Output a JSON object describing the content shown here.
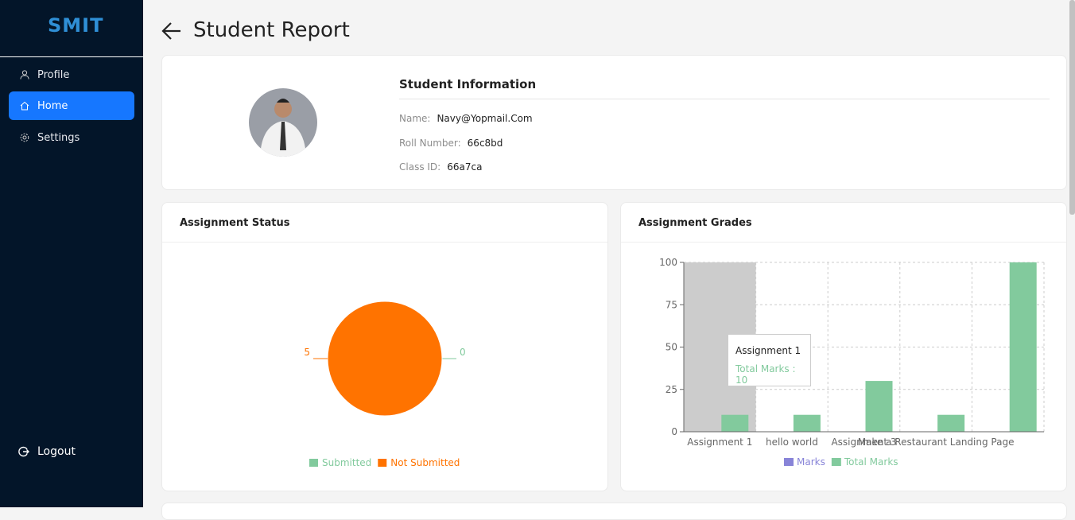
{
  "sidebar": {
    "logo": "SMIT",
    "nav": [
      {
        "label": "Profile"
      },
      {
        "label": "Home",
        "active": true
      },
      {
        "label": "Settings"
      }
    ],
    "logout": "Logout"
  },
  "header": {
    "title": "Student Report"
  },
  "student_info": {
    "title": "Student Information",
    "fields": [
      {
        "label": "Name:",
        "value": "Navy@Yopmail.Com"
      },
      {
        "label": "Roll Number:",
        "value": "66c8bd"
      },
      {
        "label": "Class ID:",
        "value": "66a7ca"
      }
    ]
  },
  "status_chart": {
    "title": "Assignment Status",
    "type": "pie",
    "categories": [
      "Submitted",
      "Not Submitted"
    ],
    "values": [
      0,
      5
    ],
    "colors": [
      "#82ca9d",
      "#ff7300"
    ]
  },
  "grades_chart": {
    "title": "Assignment Grades",
    "type": "bar",
    "categories": [
      "Assignment 1",
      "hello world",
      "Assignment 3",
      "Make a Restaurant Landing Page",
      null
    ],
    "series": [
      {
        "name": "Marks",
        "color": "#8884d8",
        "values": [
          null,
          null,
          null,
          null,
          null
        ]
      },
      {
        "name": "Total Marks",
        "color": "#82ca9d",
        "values": [
          10,
          10,
          30,
          10,
          100
        ]
      }
    ],
    "ylim": [
      0,
      100
    ],
    "yticks": [
      0,
      25,
      50,
      75,
      100
    ],
    "grid": true
  }
}
